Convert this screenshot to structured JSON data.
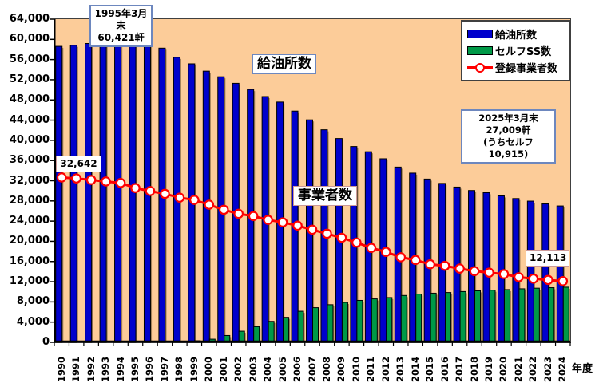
{
  "chart_data": {
    "type": "bar",
    "x": [
      1990,
      1991,
      1992,
      1993,
      1994,
      1995,
      1996,
      1997,
      1998,
      1999,
      2000,
      2001,
      2002,
      2003,
      2004,
      2005,
      2006,
      2007,
      2008,
      2009,
      2010,
      2011,
      2012,
      2013,
      2014,
      2015,
      2016,
      2017,
      2018,
      2019,
      2020,
      2021,
      2022,
      2023,
      2024
    ],
    "series": [
      {
        "name": "給油所数",
        "type": "bar",
        "color": "#0000CC",
        "values": [
          58614,
          58824,
          59179,
          59615,
          60421,
          59990,
          59615,
          58263,
          56444,
          55153,
          53704,
          52592,
          51294,
          50067,
          48672,
          47584,
          45792,
          44057,
          42090,
          40357,
          38777,
          37743,
          36349,
          34706,
          33510,
          32333,
          31467,
          30747,
          30070,
          29637,
          29005,
          28475,
          27963,
          27414,
          27009
        ]
      },
      {
        "name": "セルフSS数",
        "type": "bar",
        "color": "#009947",
        "values": [
          0,
          0,
          0,
          0,
          0,
          0,
          0,
          0,
          170,
          310,
          620,
          1350,
          2200,
          3100,
          4150,
          4950,
          6150,
          6860,
          7450,
          7900,
          8300,
          8600,
          8860,
          9275,
          9550,
          9730,
          9860,
          10050,
          10200,
          10320,
          10440,
          10600,
          10720,
          10820,
          10915
        ]
      },
      {
        "name": "登録事業者数",
        "type": "line",
        "color": "#FF0000",
        "marker": "white-circle",
        "values": [
          32642,
          32450,
          32150,
          31850,
          31550,
          30550,
          29950,
          29400,
          28650,
          28200,
          27250,
          26250,
          25450,
          25000,
          24250,
          23750,
          23100,
          22300,
          21500,
          20700,
          19750,
          18700,
          17900,
          16850,
          16300,
          15450,
          15150,
          14600,
          14100,
          13800,
          13500,
          12900,
          12600,
          12350,
          12113
        ]
      }
    ],
    "title": "",
    "xlabel": "年度",
    "ylabel": "",
    "ylim": [
      0,
      64000
    ],
    "ytick_step": 4000,
    "grid": false,
    "legend_position": "top-right",
    "plot_background": "#FCCC99"
  },
  "annotations": [
    {
      "lines": [
        "1995年3月末",
        "60,421軒"
      ],
      "border": "#6D87BE"
    },
    {
      "lines": [
        "32,642"
      ],
      "border": "#CC9999"
    },
    {
      "lines": [
        "給油所数"
      ],
      "border": "#6D87BE"
    },
    {
      "lines": [
        "事業者数"
      ],
      "border": "#CC9999"
    },
    {
      "lines": [
        "2025年3月末",
        "27,009軒",
        "(うちセルフ10,915)"
      ],
      "border": "#6D87BE"
    },
    {
      "lines": [
        "12,113"
      ],
      "border": "#CC9999"
    }
  ]
}
